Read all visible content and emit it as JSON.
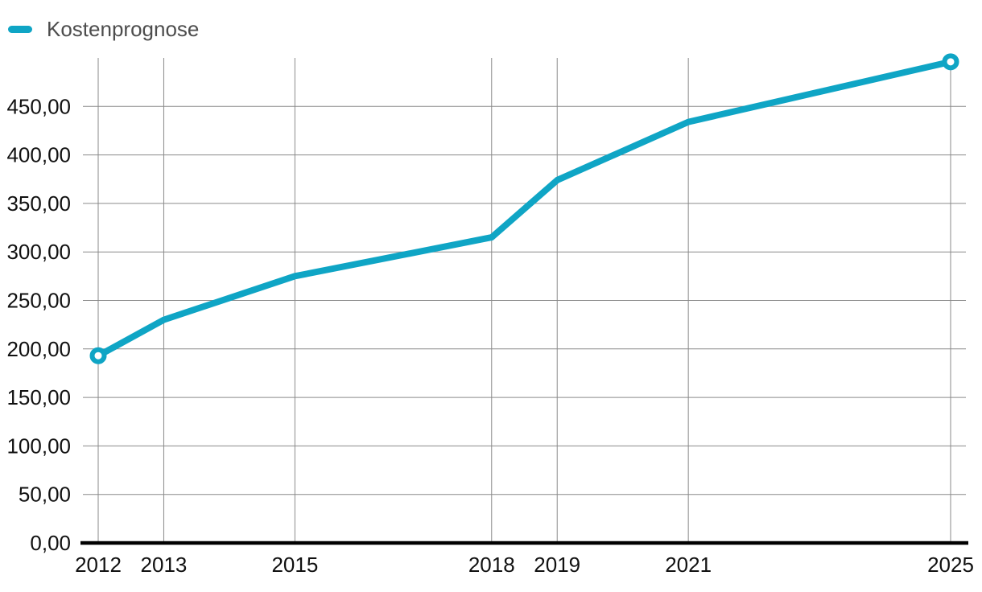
{
  "legend": {
    "label": "Kostenprognose"
  },
  "colors": {
    "accent": "#0fa5c5",
    "grid": "#8a8a8a",
    "axis": "#000000",
    "tick_label": "#111111",
    "legend_text": "#4d4d4d",
    "background": "#ffffff"
  },
  "chart_data": {
    "type": "line",
    "title": "",
    "legend_position": "top-left",
    "grid": true,
    "xlabel": "",
    "ylabel": "",
    "xlim": [
      2012,
      2025
    ],
    "ylim": [
      0,
      500
    ],
    "x_ticks": [
      {
        "value": 2012,
        "label": "2012"
      },
      {
        "value": 2013,
        "label": "2013"
      },
      {
        "value": 2015,
        "label": "2015"
      },
      {
        "value": 2018,
        "label": "2018"
      },
      {
        "value": 2019,
        "label": "2019"
      },
      {
        "value": 2021,
        "label": "2021"
      },
      {
        "value": 2025,
        "label": "2025"
      }
    ],
    "y_ticks": [
      {
        "value": 0,
        "label": "0,00"
      },
      {
        "value": 50,
        "label": "50,00"
      },
      {
        "value": 100,
        "label": "100,00"
      },
      {
        "value": 150,
        "label": "150,00"
      },
      {
        "value": 200,
        "label": "200,00"
      },
      {
        "value": 250,
        "label": "250,00"
      },
      {
        "value": 300,
        "label": "300,00"
      },
      {
        "value": 350,
        "label": "350,00"
      },
      {
        "value": 400,
        "label": "400,00"
      },
      {
        "value": 450,
        "label": "450,00"
      }
    ],
    "series": [
      {
        "name": "Kostenprognose",
        "color": "#0fa5c5",
        "x": [
          2012,
          2013,
          2015,
          2018,
          2019,
          2021,
          2025
        ],
        "values": [
          193,
          230,
          275,
          315,
          374,
          434,
          496
        ],
        "markers": [
          "first",
          "last"
        ]
      }
    ]
  }
}
